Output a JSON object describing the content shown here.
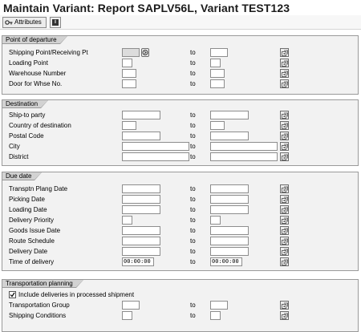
{
  "title": "Maintain Variant: Report SAPLV56L, Variant TEST123",
  "toolbar": {
    "attributes_label": "Attributes",
    "info_icon": "info-icon"
  },
  "common": {
    "to_label": "to"
  },
  "groups": [
    {
      "title": "Point of departure",
      "rows": [
        {
          "label": "Shipping Point/Receiving Pt",
          "from": "",
          "to": ""
        },
        {
          "label": "Loading Point",
          "from": "",
          "to": ""
        },
        {
          "label": "Warehouse Number",
          "from": "",
          "to": ""
        },
        {
          "label": "Door for Whse No.",
          "from": "",
          "to": ""
        }
      ]
    },
    {
      "title": "Destination",
      "rows": [
        {
          "label": "Ship-to party",
          "from": "",
          "to": ""
        },
        {
          "label": "Country of destination",
          "from": "",
          "to": ""
        },
        {
          "label": "Postal Code",
          "from": "",
          "to": ""
        },
        {
          "label": "City",
          "from": "",
          "to": ""
        },
        {
          "label": "District",
          "from": "",
          "to": ""
        }
      ]
    },
    {
      "title": "Due date",
      "rows": [
        {
          "label": "Transptn Plang Date",
          "from": "",
          "to": ""
        },
        {
          "label": "Picking Date",
          "from": "",
          "to": ""
        },
        {
          "label": "Loading Date",
          "from": "",
          "to": ""
        },
        {
          "label": "Delivery Priority",
          "from": "",
          "to": ""
        },
        {
          "label": "Goods Issue Date",
          "from": "",
          "to": ""
        },
        {
          "label": "Route Schedule",
          "from": "",
          "to": ""
        },
        {
          "label": "Delivery Date",
          "from": "",
          "to": ""
        },
        {
          "label": "Time of delivery",
          "from": "00:00:00",
          "to": "00:00:00"
        }
      ]
    },
    {
      "title": "Transportation planning",
      "checkbox_label": "Include deliveries in processed shipment",
      "checkbox_checked": true,
      "rows": [
        {
          "label": "Transportation Group",
          "from": "",
          "to": ""
        },
        {
          "label": "Shipping Conditions",
          "from": "",
          "to": ""
        }
      ]
    }
  ]
}
